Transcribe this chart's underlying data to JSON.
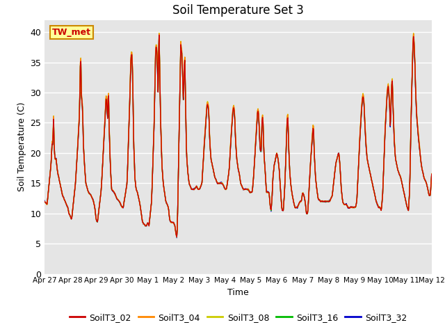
{
  "title": "Soil Temperature Set 3",
  "xlabel": "Time",
  "ylabel": "Soil Temperature (C)",
  "ylim": [
    0,
    42
  ],
  "yticks": [
    0,
    5,
    10,
    15,
    20,
    25,
    30,
    35,
    40
  ],
  "annotation": "TW_met",
  "bg_color": "#e5e5e5",
  "fig_color": "#ffffff",
  "series_colors": {
    "SoilT3_02": "#cc0000",
    "SoilT3_04": "#ff8800",
    "SoilT3_08": "#cccc00",
    "SoilT3_16": "#00bb00",
    "SoilT3_32": "#0000cc"
  },
  "series_order": [
    "SoilT3_32",
    "SoilT3_16",
    "SoilT3_08",
    "SoilT3_04",
    "SoilT3_02"
  ],
  "xtick_labels": [
    "Apr 27",
    "Apr 28",
    "Apr 29",
    "Apr 30",
    "May 1",
    "May 2",
    "May 3",
    "May 4",
    "May 5",
    "May 6",
    "May 7",
    "May 8",
    "May 9",
    "May 10",
    "May 11",
    "May 12"
  ],
  "num_days": 16,
  "hours_per_day": 48
}
